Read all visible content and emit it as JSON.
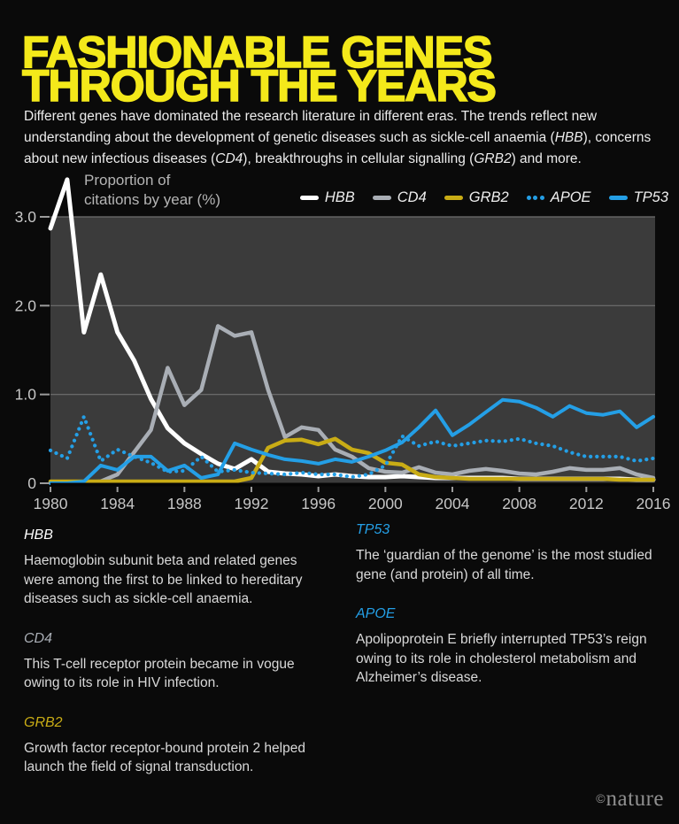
{
  "title": {
    "line1": "FASHIONABLE GENES",
    "line2": "THROUGH THE YEARS"
  },
  "intro_segments": [
    {
      "text": "Different genes have dominated the research literature in different eras. The trends reflect new understanding about the development of genetic diseases such as sickle-cell anaemia (",
      "italic": false
    },
    {
      "text": "HBB",
      "italic": true
    },
    {
      "text": "), concerns about new infectious diseases (",
      "italic": false
    },
    {
      "text": "CD4",
      "italic": true
    },
    {
      "text": "), breakthroughs in cellular signalling (",
      "italic": false
    },
    {
      "text": "GRB2",
      "italic": true
    },
    {
      "text": ") and more.",
      "italic": false
    }
  ],
  "chart_data": {
    "type": "line",
    "title": "Proportion of citations by year (%)",
    "axis_label_lines": [
      "Proportion of",
      "citations by year (%)"
    ],
    "xlim": [
      1980,
      2016
    ],
    "ylim": [
      0,
      3.0
    ],
    "grid": true,
    "grid_values": [
      1,
      2,
      3
    ],
    "legend_position": "top-right",
    "yticks": [
      {
        "v": 0,
        "label": "0"
      },
      {
        "v": 1,
        "label": "1.0"
      },
      {
        "v": 2,
        "label": "2.0"
      },
      {
        "v": 3,
        "label": "3.0"
      }
    ],
    "xticks": [
      1980,
      1984,
      1988,
      1992,
      1996,
      2000,
      2004,
      2008,
      2012,
      2016
    ],
    "x": [
      1980,
      1981,
      1982,
      1983,
      1984,
      1985,
      1986,
      1987,
      1988,
      1989,
      1990,
      1991,
      1992,
      1993,
      1994,
      1995,
      1996,
      1997,
      1998,
      1999,
      2000,
      2001,
      2002,
      2003,
      2004,
      2005,
      2006,
      2007,
      2008,
      2009,
      2010,
      2011,
      2012,
      2013,
      2014,
      2015,
      2016
    ],
    "series": [
      {
        "name": "HBB",
        "color": "#ffffff",
        "legend_style": "solid",
        "width": 5,
        "values": [
          2.87,
          3.42,
          1.7,
          2.35,
          1.7,
          1.38,
          0.95,
          0.62,
          0.45,
          0.33,
          0.22,
          0.16,
          0.27,
          0.13,
          0.11,
          0.1,
          0.08,
          0.1,
          0.08,
          0.07,
          0.07,
          0.08,
          0.07,
          0.06,
          0.06,
          0.06,
          0.06,
          0.06,
          0.05,
          0.05,
          0.05,
          0.05,
          0.05,
          0.05,
          0.05,
          0.04,
          0.04
        ]
      },
      {
        "name": "CD4",
        "color": "#a9aeb5",
        "legend_style": "solid",
        "width": 4.5,
        "values": [
          0.01,
          0.01,
          0.01,
          0.02,
          0.1,
          0.35,
          0.6,
          1.3,
          0.88,
          1.05,
          1.77,
          1.66,
          1.7,
          1.05,
          0.52,
          0.63,
          0.6,
          0.38,
          0.3,
          0.17,
          0.13,
          0.12,
          0.18,
          0.12,
          0.1,
          0.14,
          0.16,
          0.14,
          0.11,
          0.1,
          0.13,
          0.17,
          0.15,
          0.15,
          0.17,
          0.1,
          0.06
        ]
      },
      {
        "name": "GRB2",
        "color": "#c9ac15",
        "legend_style": "solid",
        "width": 4.5,
        "values": [
          0.02,
          0.02,
          0.02,
          0.02,
          0.02,
          0.02,
          0.02,
          0.02,
          0.02,
          0.02,
          0.02,
          0.02,
          0.06,
          0.4,
          0.48,
          0.49,
          0.44,
          0.5,
          0.38,
          0.34,
          0.23,
          0.21,
          0.1,
          0.07,
          0.06,
          0.05,
          0.05,
          0.05,
          0.05,
          0.05,
          0.05,
          0.05,
          0.05,
          0.05,
          0.04,
          0.04,
          0.04
        ]
      },
      {
        "name": "APOE",
        "color": "#249fe6",
        "legend_style": "dotted",
        "width": 4.2,
        "values": [
          0.37,
          0.28,
          0.75,
          0.25,
          0.38,
          0.3,
          0.23,
          0.13,
          0.14,
          0.3,
          0.13,
          0.15,
          0.12,
          0.11,
          0.1,
          0.12,
          0.1,
          0.1,
          0.07,
          0.1,
          0.2,
          0.53,
          0.42,
          0.47,
          0.42,
          0.45,
          0.48,
          0.47,
          0.5,
          0.45,
          0.42,
          0.35,
          0.3,
          0.3,
          0.3,
          0.25,
          0.28
        ]
      },
      {
        "name": "TP53",
        "color": "#249fe6",
        "legend_style": "solid",
        "width": 4,
        "values": [
          0.0,
          0.0,
          0.02,
          0.2,
          0.15,
          0.3,
          0.3,
          0.14,
          0.2,
          0.06,
          0.1,
          0.45,
          0.38,
          0.32,
          0.27,
          0.25,
          0.22,
          0.27,
          0.24,
          0.3,
          0.37,
          0.46,
          0.63,
          0.82,
          0.54,
          0.66,
          0.8,
          0.94,
          0.92,
          0.85,
          0.75,
          0.87,
          0.79,
          0.77,
          0.81,
          0.63,
          0.75
        ]
      }
    ],
    "colors": {
      "plot_background": "#3b3b3b",
      "gridline": "#707070",
      "baseline": "#050505",
      "tick": "#9b9b9b",
      "tick_label": "#c6c6c6"
    }
  },
  "notes": {
    "left": [
      {
        "gene": "HBB",
        "color": "#ffffff",
        "body": "Haemoglobin subunit beta and related genes were among the first to be linked to hereditary diseases such as sickle-cell anaemia."
      },
      {
        "gene": "CD4",
        "color": "#a9aeb5",
        "body": "This T-cell receptor protein became in vogue owing to its role in HIV infection."
      },
      {
        "gene": "GRB2",
        "color": "#c9ac15",
        "body": "Growth factor receptor-bound protein 2 helped launch the field of signal transduction."
      }
    ],
    "right": [
      {
        "gene": "TP53",
        "color": "#249fe6",
        "body": "The ‘guardian of the genome’ is the most studied gene (and protein) of all time."
      },
      {
        "gene": "APOE",
        "color": "#249fe6",
        "body": "Apolipoprotein E briefly interrupted TP53’s reign owing to its role in cholesterol metabolism and Alzheimer’s disease."
      }
    ]
  },
  "footer": {
    "copyright_symbol": "©",
    "brand": "nature"
  }
}
